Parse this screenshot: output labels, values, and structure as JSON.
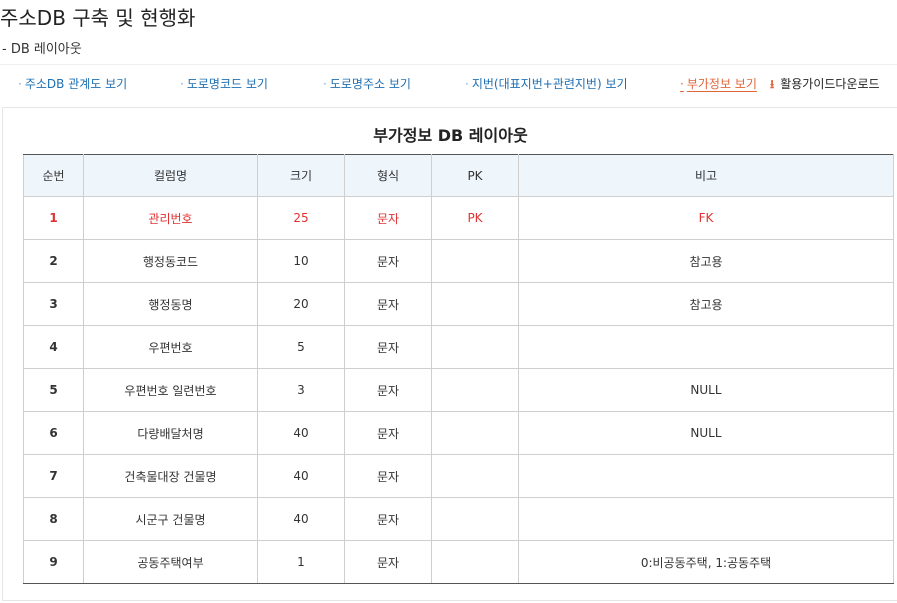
{
  "page": {
    "title": "주소DB 구축 및 현행화",
    "subtitle": "- DB 레이아웃"
  },
  "tabs": [
    {
      "label": "주소DB 관계도 보기",
      "active": false
    },
    {
      "label": "도로명코드 보기",
      "active": false
    },
    {
      "label": "도로명주소 보기",
      "active": false
    },
    {
      "label": "지번(대표지번+관련지번) 보기",
      "active": false
    },
    {
      "label": "부가정보 보기",
      "active": true
    }
  ],
  "download": {
    "label": "활용가이드다운로드",
    "icon": "download-icon"
  },
  "table": {
    "title": "부가정보 DB 레이아웃",
    "headers": [
      "순번",
      "컬럼명",
      "크기",
      "형식",
      "PK",
      "비고"
    ],
    "rows": [
      [
        "1",
        "관리번호",
        "25",
        "문자",
        "PK",
        "FK"
      ],
      [
        "2",
        "행정동코드",
        "10",
        "문자",
        "",
        "참고용"
      ],
      [
        "3",
        "행정동명",
        "20",
        "문자",
        "",
        "참고용"
      ],
      [
        "4",
        "우편번호",
        "5",
        "문자",
        "",
        ""
      ],
      [
        "5",
        "우편번호 일련번호",
        "3",
        "문자",
        "",
        "NULL"
      ],
      [
        "6",
        "다량배달처명",
        "40",
        "문자",
        "",
        "NULL"
      ],
      [
        "7",
        "건축물대장 건물명",
        "40",
        "문자",
        "",
        ""
      ],
      [
        "8",
        "시군구 건물명",
        "40",
        "문자",
        "",
        ""
      ],
      [
        "9",
        "공동주택여부",
        "1",
        "문자",
        "",
        "0:비공동주택, 1:공동주택"
      ]
    ]
  },
  "colors": {
    "link": "#1f6fb2",
    "active_tab": "#e0663a",
    "pk_row": "#e03232",
    "header_bg": "#eef6fc"
  }
}
